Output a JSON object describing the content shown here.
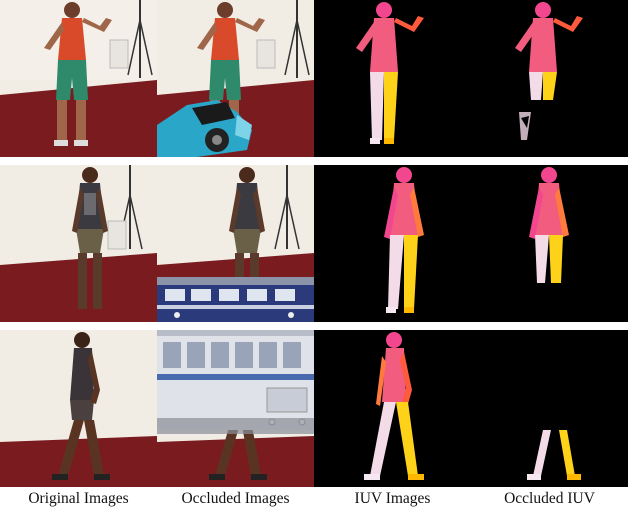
{
  "figure": {
    "columns": [
      {
        "label": "Original Images"
      },
      {
        "label": "Occluded Images"
      },
      {
        "label": "IUV Images"
      },
      {
        "label": "Occluded IUV"
      }
    ],
    "rows": [
      {
        "subject": "woman-red-top-green-shorts",
        "occluder": "motorcycle"
      },
      {
        "subject": "man-patterned-shirt",
        "occluder": "blue-train"
      },
      {
        "subject": "man-walking-side-view",
        "occluder": "white-train"
      }
    ],
    "colors": {
      "wall": "#f1ece4",
      "floor": "#7a1c1f",
      "iuv_background": "#000000",
      "iuv_pink": "#f2478f",
      "iuv_orange": "#ff7a3c",
      "iuv_yellow": "#ffd21a",
      "iuv_white": "#f6e8f2"
    }
  }
}
